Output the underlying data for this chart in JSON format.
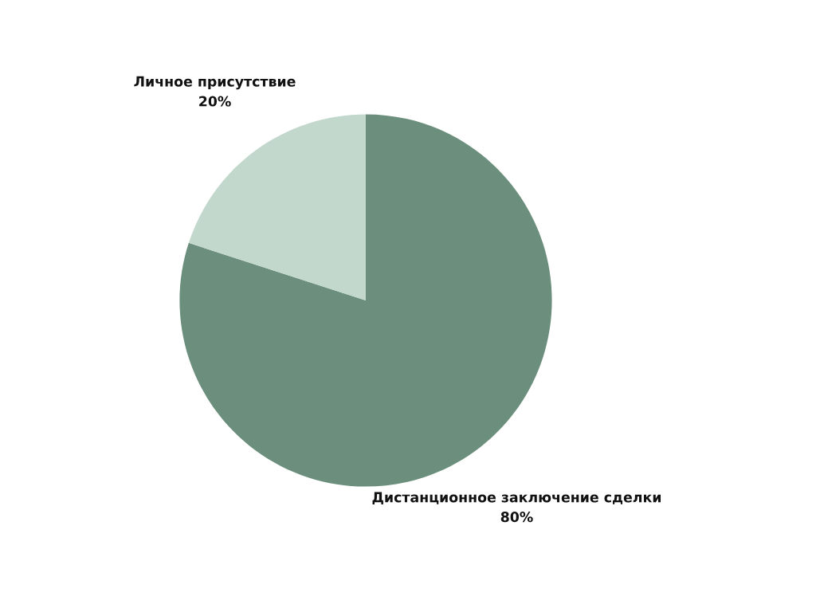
{
  "chart_data": {
    "type": "pie",
    "categories": [
      "Дистанционное заключение сделки",
      "Личное присутствие"
    ],
    "values": [
      80,
      20
    ],
    "value_labels": [
      "80%",
      "20%"
    ],
    "colors": [
      "#6b8f7c",
      "#c2d8cc"
    ]
  }
}
